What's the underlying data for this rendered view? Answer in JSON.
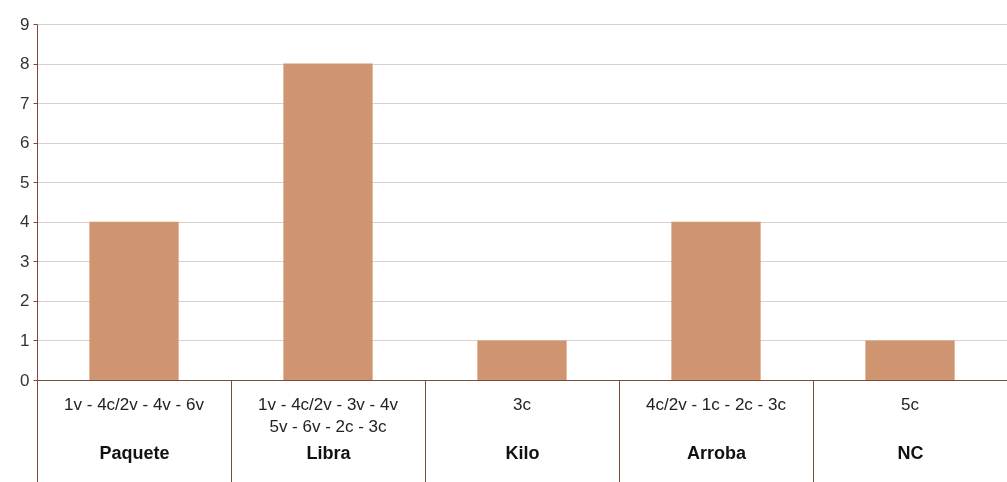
{
  "chart_data": {
    "type": "bar",
    "categories": [
      "Paquete",
      "Libra",
      "Kilo",
      "Arroba",
      "NC"
    ],
    "values": [
      4,
      8,
      1,
      4,
      1
    ],
    "color": "#cf9470",
    "ylim": [
      0,
      9
    ],
    "yticks": [
      0,
      1,
      2,
      3,
      4,
      5,
      6,
      7,
      8,
      9
    ],
    "grid": "y",
    "annotations": [
      "1v - 4c/2v - 4v - 6v",
      "1v - 4c/2v - 3v - 4v 5v - 6v - 2c - 3c",
      "3c",
      "4c/2v - 1c - 2c - 3c",
      "5c"
    ]
  }
}
